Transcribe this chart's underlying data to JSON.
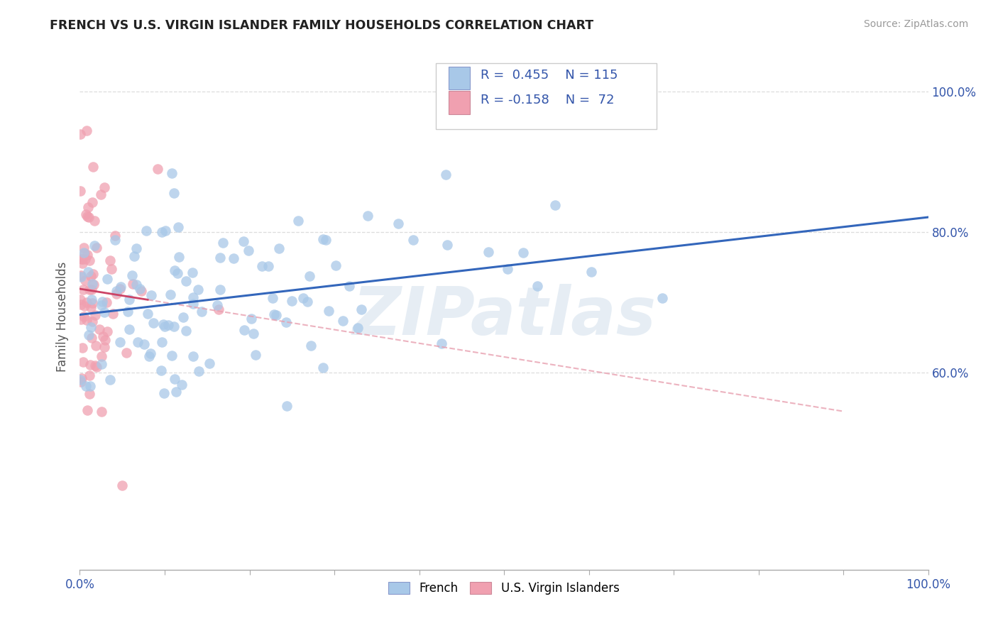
{
  "title": "FRENCH VS U.S. VIRGIN ISLANDER FAMILY HOUSEHOLDS CORRELATION CHART",
  "source": "Source: ZipAtlas.com",
  "ylabel": "Family Households",
  "xmin": 0.0,
  "xmax": 1.0,
  "ymin": 0.32,
  "ymax": 1.04,
  "xtick_labels": [
    "0.0%",
    "",
    "",
    "",
    "",
    "",
    "",
    "",
    "",
    "",
    "100.0%"
  ],
  "xtick_vals": [
    0.0,
    0.1,
    0.2,
    0.3,
    0.4,
    0.5,
    0.6,
    0.7,
    0.8,
    0.9,
    1.0
  ],
  "ytick_labels_right": [
    "60.0%",
    "80.0%",
    "100.0%"
  ],
  "ytick_vals": [
    0.6,
    0.8,
    1.0
  ],
  "french_color": "#a8c8e8",
  "usvi_color": "#f0a0b0",
  "regression_french_color": "#3366bb",
  "regression_usvi_solid_color": "#cc4466",
  "regression_usvi_dash_color": "#e8a0b0",
  "R_french": 0.455,
  "N_french": 115,
  "R_usvi": -0.158,
  "N_usvi": 72,
  "legend_color": "#3355aa",
  "background_color": "#ffffff",
  "grid_color": "#dddddd",
  "watermark": "ZIPatlas"
}
